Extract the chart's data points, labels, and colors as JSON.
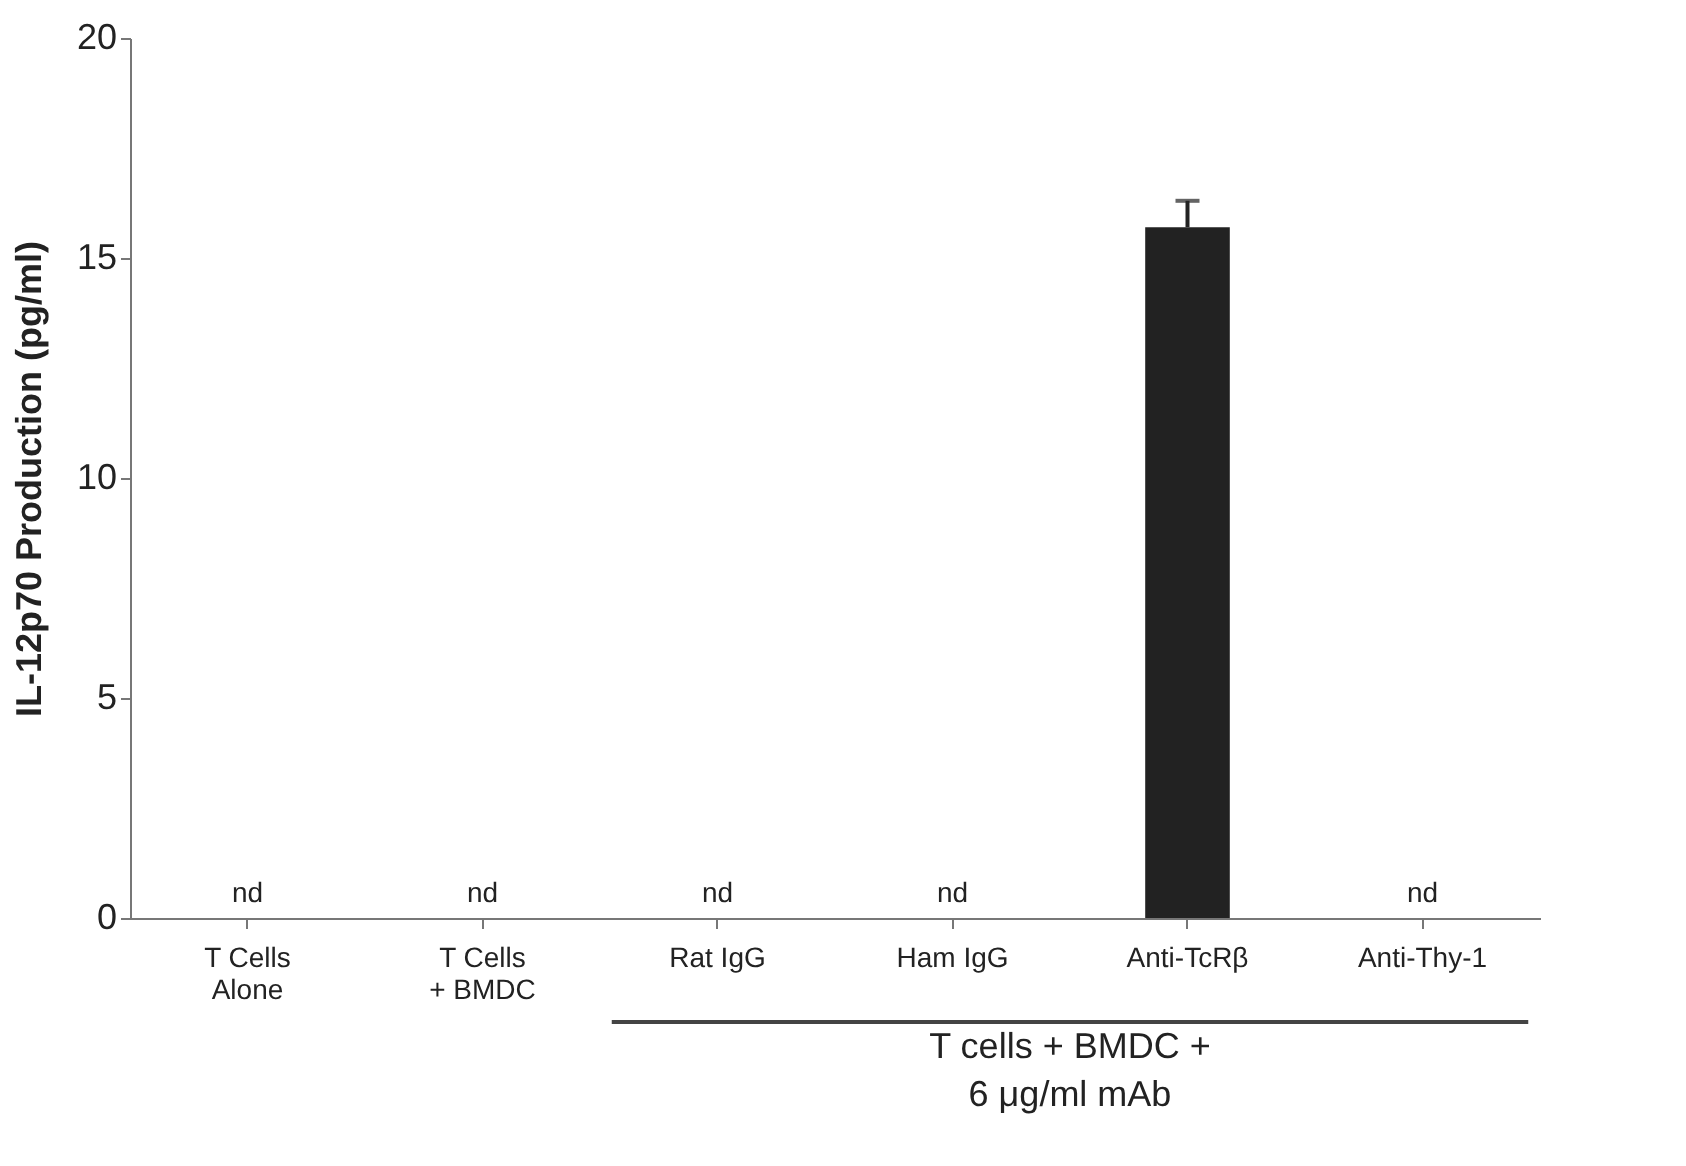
{
  "chart_data": {
    "type": "bar",
    "ylabel": "IL-12p70 Production (pg/ml)",
    "categories": [
      "T Cells\nAlone",
      "T Cells\n+ BMDC",
      "Rat IgG",
      "Ham IgG",
      "Anti-TcRβ",
      "Anti-Thy-1"
    ],
    "values": [
      null,
      null,
      null,
      null,
      15.7,
      null
    ],
    "errors": [
      null,
      null,
      null,
      null,
      0.6,
      null
    ],
    "value_labels": [
      "nd",
      "nd",
      "nd",
      "nd",
      null,
      "nd"
    ],
    "color": "#222222",
    "ylim": [
      0,
      20
    ],
    "yticks": [
      0,
      5,
      10,
      15,
      20
    ],
    "grid": false,
    "annotations": [
      "T cells + BMDC +\n6 μg/ml mAb"
    ]
  }
}
